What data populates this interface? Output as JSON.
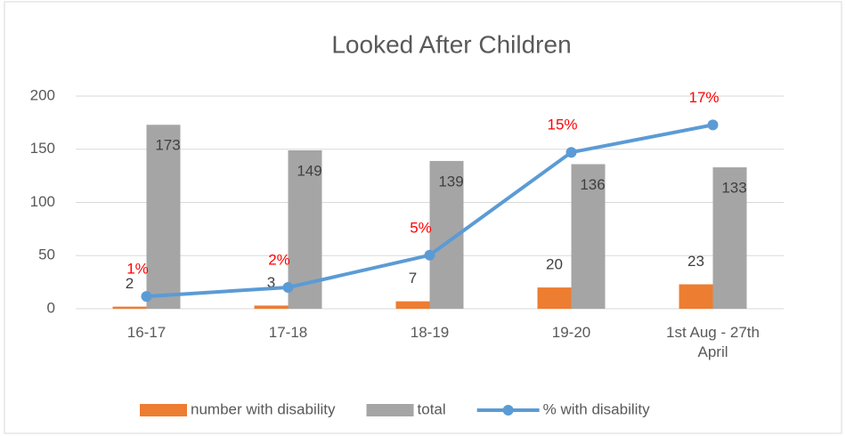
{
  "chart_data": {
    "type": "bar",
    "title": "Looked After Children",
    "categories": [
      "16-17",
      "17-18",
      "18-19",
      "19-20",
      "1st Aug - 27th April"
    ],
    "series": [
      {
        "name": "number with disability",
        "color": "#ed7d31",
        "values": [
          2,
          3,
          7,
          20,
          23
        ]
      },
      {
        "name": "total",
        "color": "#a5a5a5",
        "values": [
          173,
          149,
          139,
          136,
          133
        ]
      },
      {
        "name": "% with disability",
        "color": "#5b9bd5",
        "type": "line",
        "axis": "y2",
        "values": [
          1.16,
          2.01,
          5.04,
          14.71,
          17.29
        ],
        "value_labels": [
          "1%",
          "2%",
          "5%",
          "15%",
          "17%"
        ]
      }
    ],
    "ylim": [
      0,
      200
    ],
    "yticks": [
      0,
      50,
      100,
      150,
      200
    ],
    "y2lim": [
      0,
      20
    ],
    "grid": true,
    "legend": "bottom"
  }
}
